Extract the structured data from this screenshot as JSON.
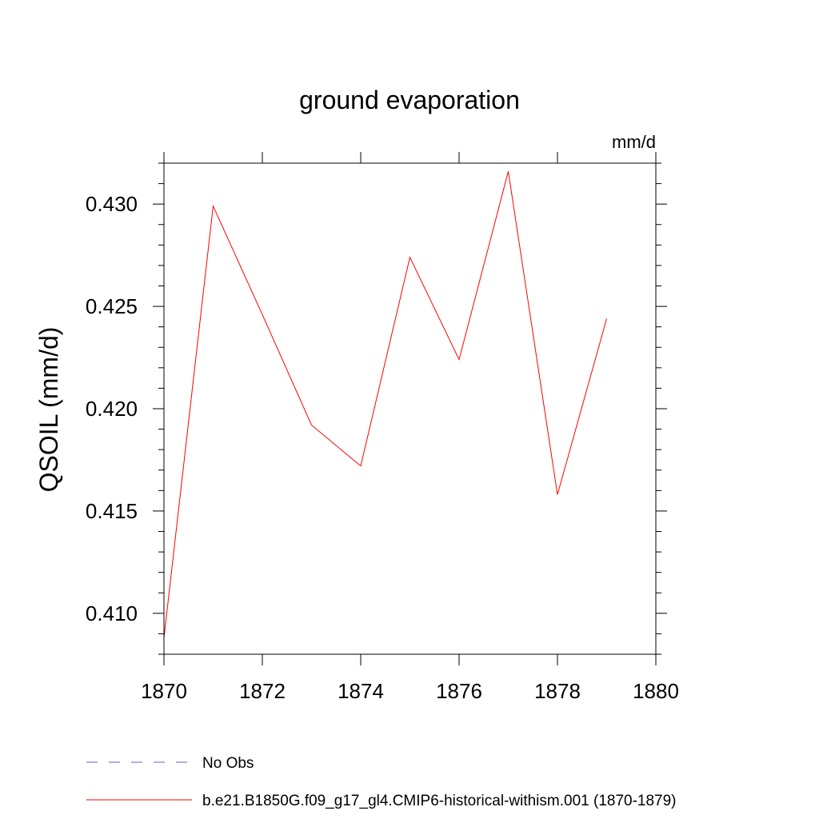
{
  "chart_data": {
    "type": "line",
    "title": "ground evaporation",
    "units": "mm/d",
    "ylabel": "QSOIL  (mm/d)",
    "xlabel": "",
    "xlim": [
      1870,
      1880
    ],
    "ylim": [
      0.408,
      0.432
    ],
    "x_ticks": [
      1870,
      1872,
      1874,
      1876,
      1878,
      1880
    ],
    "x_tick_labels": [
      "1870",
      "1872",
      "1874",
      "1876",
      "1878",
      "1880"
    ],
    "y_ticks": [
      0.41,
      0.415,
      0.42,
      0.425,
      0.43
    ],
    "y_tick_labels": [
      "0.410",
      "0.415",
      "0.420",
      "0.425",
      "0.430"
    ],
    "grid": false,
    "series": [
      {
        "name": "b.e21.B1850G.f09_g17_gl4.CMIP6-historical-withism.001 (1870-1879)",
        "color": "#ff0000",
        "style": "solid",
        "x": [
          1870,
          1871,
          1872,
          1873,
          1874,
          1875,
          1876,
          1877,
          1878,
          1879
        ],
        "y": [
          0.4088,
          0.4299,
          0.4246,
          0.4192,
          0.4172,
          0.4274,
          0.4224,
          0.4316,
          0.4158,
          0.4244
        ]
      }
    ],
    "legend": {
      "placement": "bottom",
      "entries": [
        {
          "label": "No Obs",
          "color": "#6a5acd",
          "style": "dashed"
        },
        {
          "label": "b.e21.B1850G.f09_g17_gl4.CMIP6-historical-withism.001 (1870-1879)",
          "color": "#ff0000",
          "style": "solid"
        }
      ]
    }
  }
}
